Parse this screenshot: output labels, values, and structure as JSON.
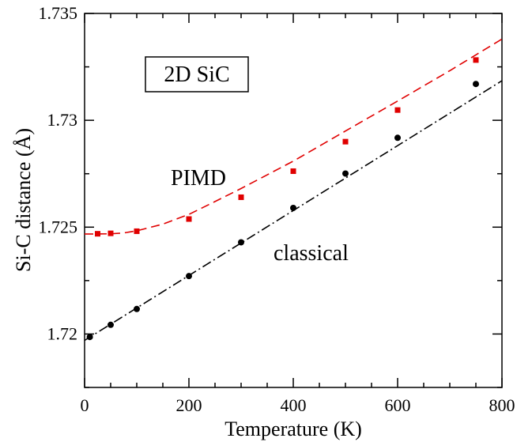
{
  "chart_data": {
    "type": "scatter",
    "title": "",
    "xlabel": "Temperature  (K)",
    "ylabel": "Si-C  distance  (Å)",
    "xlim": [
      0,
      800
    ],
    "ylim": [
      1.7175,
      1.735
    ],
    "x_ticks": [
      0,
      200,
      400,
      600,
      800
    ],
    "x_tick_labels": [
      "0",
      "200",
      "400",
      "600",
      "800"
    ],
    "y_ticks": [
      1.72,
      1.725,
      1.73,
      1.735
    ],
    "y_tick_labels": [
      "1.72",
      "1.725",
      "1.73",
      "1.735"
    ],
    "grid": false,
    "legend": "none",
    "boxed_label": "2D SiC",
    "annotations": [
      {
        "text": "PIMD",
        "series": "PIMD"
      },
      {
        "text": "classical",
        "series": "classical"
      }
    ],
    "series": [
      {
        "name": "PIMD",
        "color": "#e00000",
        "marker": "square",
        "x": [
          25,
          50,
          100,
          200,
          300,
          400,
          500,
          600,
          750
        ],
        "y": [
          1.72469,
          1.72471,
          1.72481,
          1.72538,
          1.7264,
          1.72762,
          1.729,
          1.73048,
          1.73282
        ]
      },
      {
        "name": "classical",
        "color": "#000000",
        "marker": "circle",
        "x": [
          10,
          50,
          100,
          200,
          300,
          400,
          500,
          600,
          750
        ],
        "y": [
          1.71986,
          1.72043,
          1.72117,
          1.72271,
          1.72429,
          1.7259,
          1.72751,
          1.72918,
          1.7317
        ]
      }
    ],
    "fits": [
      {
        "series": "PIMD",
        "style": "dashed",
        "color": "#e00000",
        "x": [
          0,
          25,
          50,
          75,
          100,
          150,
          200,
          250,
          300,
          400,
          500,
          600,
          700,
          800
        ],
        "y": [
          1.72468,
          1.72468,
          1.72469,
          1.72473,
          1.72483,
          1.72514,
          1.7256,
          1.7262,
          1.72681,
          1.72809,
          1.7295,
          1.7309,
          1.73232,
          1.7338
        ]
      },
      {
        "series": "classical",
        "style": "dash-dot",
        "color": "#000000",
        "x": [
          0,
          800
        ],
        "y": [
          1.7197,
          1.73185
        ]
      }
    ]
  }
}
